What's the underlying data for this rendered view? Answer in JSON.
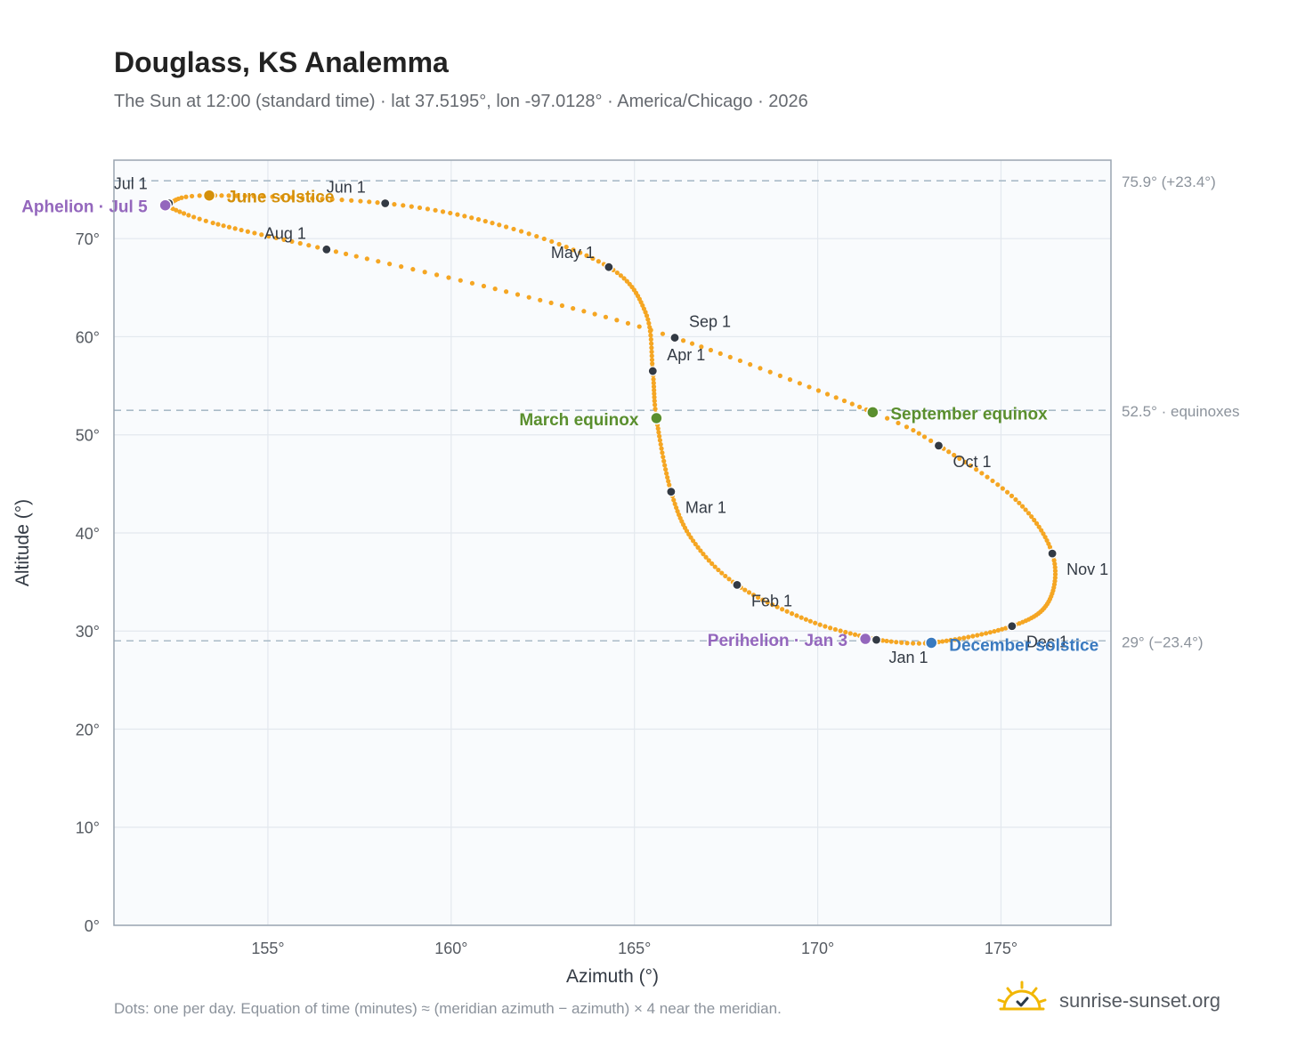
{
  "header": {
    "title": "Douglass, KS Analemma",
    "subtitle": "The Sun at 12:00 (standard time) · lat 37.5195°, lon -97.0128° · America/Chicago · 2026"
  },
  "footer": {
    "note": "Dots: one per day. Equation of time (minutes) ≈ (meridian azimuth − azimuth) × 4 near the meridian.",
    "brand": "sunrise-sunset.org"
  },
  "colors": {
    "path": "#f5a623",
    "month_dot": "#333a44",
    "solstice_june": "#d4900a",
    "solstice_december": "#3a7abf",
    "equinox": "#5a8f2e",
    "apsis": "#9467bd",
    "reference_line": "#aabbc8",
    "plot_bg": "#f9fbfd",
    "grid": "#e3e8ee"
  },
  "chart_data": {
    "type": "scatter",
    "xlabel": "Azimuth (°)",
    "ylabel": "Altitude (°)",
    "xlim": [
      150.8,
      178.0
    ],
    "ylim": [
      0,
      78
    ],
    "x_ticks": [
      155,
      160,
      165,
      170,
      175
    ],
    "x_tick_labels": [
      "155°",
      "160°",
      "165°",
      "170°",
      "175°"
    ],
    "y_ticks": [
      0,
      10,
      20,
      30,
      40,
      50,
      60,
      70
    ],
    "y_tick_labels": [
      "0°",
      "10°",
      "20°",
      "30°",
      "40°",
      "50°",
      "60°",
      "70°"
    ],
    "grid": true,
    "reference_lines": [
      {
        "y": 75.9,
        "label": "75.9° (+23.4°)"
      },
      {
        "y": 52.5,
        "label": "52.5° · equinoxes"
      },
      {
        "y": 29.0,
        "label": "29° (−23.4°)"
      }
    ],
    "months": [
      {
        "label": "Jan 1",
        "az": 171.6,
        "alt": 29.1
      },
      {
        "label": "Feb 1",
        "az": 167.8,
        "alt": 34.7
      },
      {
        "label": "Mar 1",
        "az": 166.0,
        "alt": 44.2
      },
      {
        "label": "Apr 1",
        "az": 165.5,
        "alt": 56.5
      },
      {
        "label": "May 1",
        "az": 164.3,
        "alt": 67.1
      },
      {
        "label": "Jun 1",
        "az": 158.2,
        "alt": 73.6
      },
      {
        "label": "Jul 1",
        "az": 152.3,
        "alt": 73.6
      },
      {
        "label": "Aug 1",
        "az": 156.6,
        "alt": 68.9
      },
      {
        "label": "Sep 1",
        "az": 166.1,
        "alt": 59.9
      },
      {
        "label": "Oct 1",
        "az": 173.3,
        "alt": 48.9
      },
      {
        "label": "Nov 1",
        "az": 176.4,
        "alt": 37.9
      },
      {
        "label": "Dec 1",
        "az": 175.3,
        "alt": 30.5
      }
    ],
    "events": [
      {
        "label": "June solstice",
        "az": 153.4,
        "alt": 74.4,
        "kind": "solstice_june"
      },
      {
        "label": "December solstice",
        "az": 173.1,
        "alt": 28.8,
        "kind": "solstice_december"
      },
      {
        "label": "March equinox",
        "az": 165.6,
        "alt": 51.7,
        "kind": "equinox"
      },
      {
        "label": "September equinox",
        "az": 171.5,
        "alt": 52.3,
        "kind": "equinox"
      },
      {
        "label": "Aphelion · Jul 5",
        "az": 152.2,
        "alt": 73.4,
        "kind": "apsis"
      },
      {
        "label": "Perihelion · Jan 3",
        "az": 171.3,
        "alt": 29.2,
        "kind": "apsis"
      }
    ],
    "path_keypoints": [
      {
        "day": 0,
        "az": 171.6,
        "alt": 29.1
      },
      {
        "day": 15,
        "az": 169.8,
        "alt": 31.0
      },
      {
        "day": 31,
        "az": 167.8,
        "alt": 34.7
      },
      {
        "day": 45,
        "az": 166.6,
        "alt": 39.2
      },
      {
        "day": 59,
        "az": 166.0,
        "alt": 44.2
      },
      {
        "day": 78,
        "az": 165.6,
        "alt": 51.7
      },
      {
        "day": 90,
        "az": 165.5,
        "alt": 56.5
      },
      {
        "day": 105,
        "az": 165.3,
        "alt": 62.5
      },
      {
        "day": 120,
        "az": 164.3,
        "alt": 67.1
      },
      {
        "day": 135,
        "az": 161.5,
        "alt": 71.2
      },
      {
        "day": 151,
        "az": 158.2,
        "alt": 73.6
      },
      {
        "day": 171,
        "az": 153.4,
        "alt": 74.4
      },
      {
        "day": 181,
        "az": 152.3,
        "alt": 73.6
      },
      {
        "day": 185,
        "az": 152.2,
        "alt": 73.4
      },
      {
        "day": 196,
        "az": 153.5,
        "alt": 71.6
      },
      {
        "day": 212,
        "az": 156.6,
        "alt": 68.9
      },
      {
        "day": 228,
        "az": 161.5,
        "alt": 64.6
      },
      {
        "day": 243,
        "az": 166.1,
        "alt": 59.9
      },
      {
        "day": 265,
        "az": 171.5,
        "alt": 52.3
      },
      {
        "day": 273,
        "az": 173.3,
        "alt": 48.9
      },
      {
        "day": 288,
        "az": 175.4,
        "alt": 43.4
      },
      {
        "day": 304,
        "az": 176.4,
        "alt": 37.9
      },
      {
        "day": 319,
        "az": 176.3,
        "alt": 33.0
      },
      {
        "day": 334,
        "az": 175.3,
        "alt": 30.5
      },
      {
        "day": 354,
        "az": 173.1,
        "alt": 28.8
      },
      {
        "day": 365,
        "az": 171.6,
        "alt": 29.1
      }
    ]
  }
}
